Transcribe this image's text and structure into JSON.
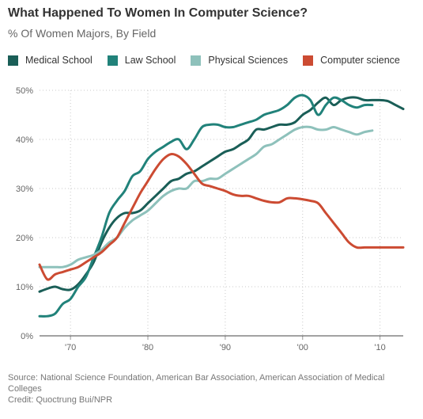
{
  "header": {
    "title": "What Happened To Women In Computer Science?",
    "subtitle": "% Of Women Majors, By Field"
  },
  "footer": {
    "source": "Source: National Science Foundation, American Bar Association, American Association of Medical Colleges",
    "credit": "Credit: Quoctrung Bui/NPR"
  },
  "chart_data": {
    "type": "line",
    "title": "What Happened To Women In Computer Science?",
    "subtitle": "% Of Women Majors, By Field",
    "xlim": [
      1966,
      2013
    ],
    "ylim": [
      0,
      50
    ],
    "y_ticks": [
      0,
      10,
      20,
      30,
      40,
      50
    ],
    "y_tick_labels": [
      "0%",
      "10%",
      "20%",
      "30%",
      "40%",
      "50%"
    ],
    "x_ticks": [
      1970,
      1980,
      1990,
      2000,
      2010
    ],
    "x_tick_labels": [
      "'70",
      "'80",
      "'90",
      "'00",
      "'10"
    ],
    "grid": true,
    "legend_position": "top-left",
    "series": [
      {
        "name": "Medical School",
        "color": "#1a5e57",
        "x": [
          1966,
          1967,
          1968,
          1969,
          1970,
          1971,
          1972,
          1973,
          1974,
          1975,
          1976,
          1977,
          1978,
          1979,
          1980,
          1981,
          1982,
          1983,
          1984,
          1985,
          1986,
          1987,
          1988,
          1989,
          1990,
          1991,
          1992,
          1993,
          1994,
          1995,
          1996,
          1997,
          1998,
          1999,
          2000,
          2001,
          2002,
          2003,
          2004,
          2005,
          2006,
          2007,
          2008,
          2009,
          2010,
          2011,
          2012,
          2013
        ],
        "values": [
          9,
          9.6,
          10,
          9.5,
          9.4,
          10.5,
          12.5,
          15,
          19,
          22,
          24,
          25,
          25,
          25.5,
          27,
          28.5,
          30,
          31.5,
          32,
          33,
          33.5,
          34.5,
          35.5,
          36.5,
          37.5,
          38,
          39,
          40,
          42,
          42,
          42.5,
          43,
          43,
          43.5,
          45,
          46,
          47.5,
          48.5,
          47,
          48,
          48.5,
          48.5,
          48,
          48,
          48,
          47.8,
          47,
          46.2
        ]
      },
      {
        "name": "Law School",
        "color": "#21827a",
        "x": [
          1966,
          1967,
          1968,
          1969,
          1970,
          1971,
          1972,
          1973,
          1974,
          1975,
          1976,
          1977,
          1978,
          1979,
          1980,
          1981,
          1982,
          1983,
          1984,
          1985,
          1986,
          1987,
          1988,
          1989,
          1990,
          1991,
          1992,
          1993,
          1994,
          1995,
          1996,
          1997,
          1998,
          1999,
          2000,
          2001,
          2002,
          2003,
          2004,
          2005,
          2006,
          2007,
          2008,
          2009
        ],
        "values": [
          4,
          4,
          4.5,
          6.5,
          7.5,
          10,
          12,
          16,
          20,
          25,
          27.5,
          29.5,
          32.5,
          33.5,
          36,
          37.5,
          38.5,
          39.5,
          40,
          38,
          40,
          42.5,
          43,
          43,
          42.5,
          42.5,
          43,
          43.5,
          44,
          45,
          45.5,
          46,
          47,
          48.5,
          49,
          48,
          45,
          47,
          48.5,
          48,
          47,
          46.5,
          47,
          47
        ]
      },
      {
        "name": "Physical Sciences",
        "color": "#8ec1bb",
        "x": [
          1966,
          1967,
          1968,
          1969,
          1970,
          1971,
          1972,
          1973,
          1974,
          1975,
          1976,
          1977,
          1978,
          1979,
          1980,
          1981,
          1982,
          1983,
          1984,
          1985,
          1986,
          1987,
          1988,
          1989,
          1990,
          1991,
          1992,
          1993,
          1994,
          1995,
          1996,
          1997,
          1998,
          1999,
          2000,
          2001,
          2002,
          2003,
          2004,
          2005,
          2006,
          2007,
          2008,
          2009
        ],
        "values": [
          14,
          14,
          14,
          14,
          14.5,
          15.5,
          16,
          16.5,
          17.5,
          19,
          20,
          22,
          23.5,
          24.5,
          25.5,
          27,
          28.5,
          29.5,
          30,
          30,
          31.5,
          31.5,
          32,
          32,
          33,
          34,
          35,
          36,
          37,
          38.5,
          39,
          40,
          41,
          42,
          42.5,
          42.5,
          42,
          42,
          42.5,
          42,
          41.5,
          41,
          41.5,
          41.8
        ]
      },
      {
        "name": "Computer science",
        "color": "#cc4b32",
        "x": [
          1966,
          1967,
          1968,
          1969,
          1970,
          1971,
          1972,
          1973,
          1974,
          1975,
          1976,
          1977,
          1978,
          1979,
          1980,
          1981,
          1982,
          1983,
          1984,
          1985,
          1986,
          1987,
          1988,
          1989,
          1990,
          1991,
          1992,
          1993,
          1994,
          1995,
          1996,
          1997,
          1998,
          1999,
          2000,
          2001,
          2002,
          2003,
          2004,
          2005,
          2006,
          2007,
          2008,
          2009,
          2010,
          2011,
          2012,
          2013
        ],
        "values": [
          14.5,
          11.5,
          12.5,
          13,
          13.5,
          14,
          15,
          16,
          17,
          18.5,
          20,
          23,
          26,
          29,
          31.5,
          34,
          36,
          37,
          36.5,
          35,
          33,
          31,
          30.5,
          30,
          29.5,
          28.8,
          28.5,
          28.5,
          28,
          27.5,
          27.2,
          27.2,
          28,
          28,
          27.8,
          27.5,
          27,
          25,
          23,
          21,
          19,
          18,
          18,
          18,
          18,
          18,
          18,
          18
        ]
      }
    ]
  }
}
